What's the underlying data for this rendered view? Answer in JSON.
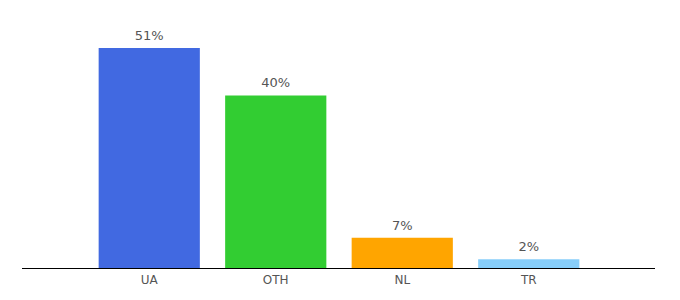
{
  "chart_data": {
    "type": "bar",
    "categories": [
      "UA",
      "OTH",
      "NL",
      "TR"
    ],
    "values": [
      51,
      40,
      7,
      2
    ],
    "value_labels": [
      "51%",
      "40%",
      "7%",
      "2%"
    ],
    "colors": [
      "#4169e1",
      "#32cd32",
      "#ffa500",
      "#87cefa"
    ],
    "ylim": [
      0,
      51
    ],
    "data_labels": true,
    "tick_labels": "x",
    "grid": false
  }
}
